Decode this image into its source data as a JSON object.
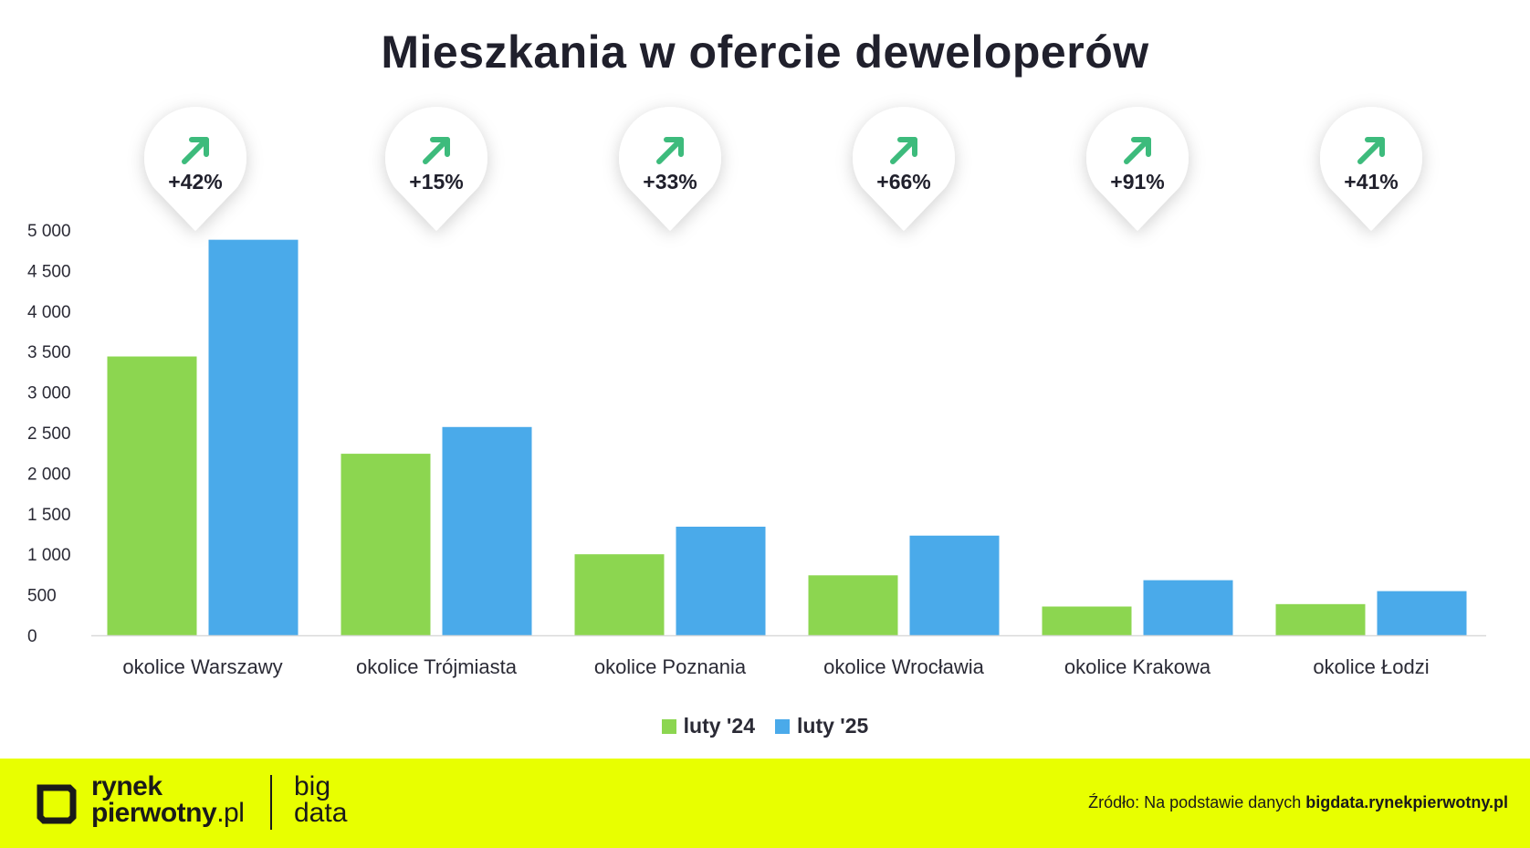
{
  "chart_data": {
    "type": "bar",
    "title": "Mieszkania w ofercie deweloperów",
    "categories": [
      "okolice Warszawy",
      "okolice Trójmiasta",
      "okolice Poznania",
      "okolice Wrocławia",
      "okolice Krakowa",
      "okolice Łodzi"
    ],
    "series": [
      {
        "name": "luty '24",
        "color": "#8cd650",
        "values": [
          3440,
          2240,
          1000,
          740,
          355,
          385
        ]
      },
      {
        "name": "luty '25",
        "color": "#4aaaea",
        "values": [
          4880,
          2570,
          1340,
          1230,
          680,
          545
        ]
      }
    ],
    "changes": [
      "+42%",
      "+15%",
      "+33%",
      "+66%",
      "+91%",
      "+41%"
    ],
    "yticks": [
      "0",
      "500",
      "1 000",
      "1 500",
      "2 000",
      "2 500",
      "3 000",
      "3 500",
      "4 000",
      "4 500",
      "5 000"
    ],
    "ylim": [
      0,
      5000
    ],
    "legend_position": "bottom-center",
    "arrow_color": "#3dbb7c",
    "grid": false
  },
  "footer": {
    "brand_line1": "rynek",
    "brand_line2": "pierwotny",
    "brand_suffix": ".pl",
    "bigdata_line1": "big",
    "bigdata_line2": "data",
    "source_label": "Źródło: Na podstawie danych",
    "source_site": "bigdata.rynekpierwotny.pl"
  }
}
